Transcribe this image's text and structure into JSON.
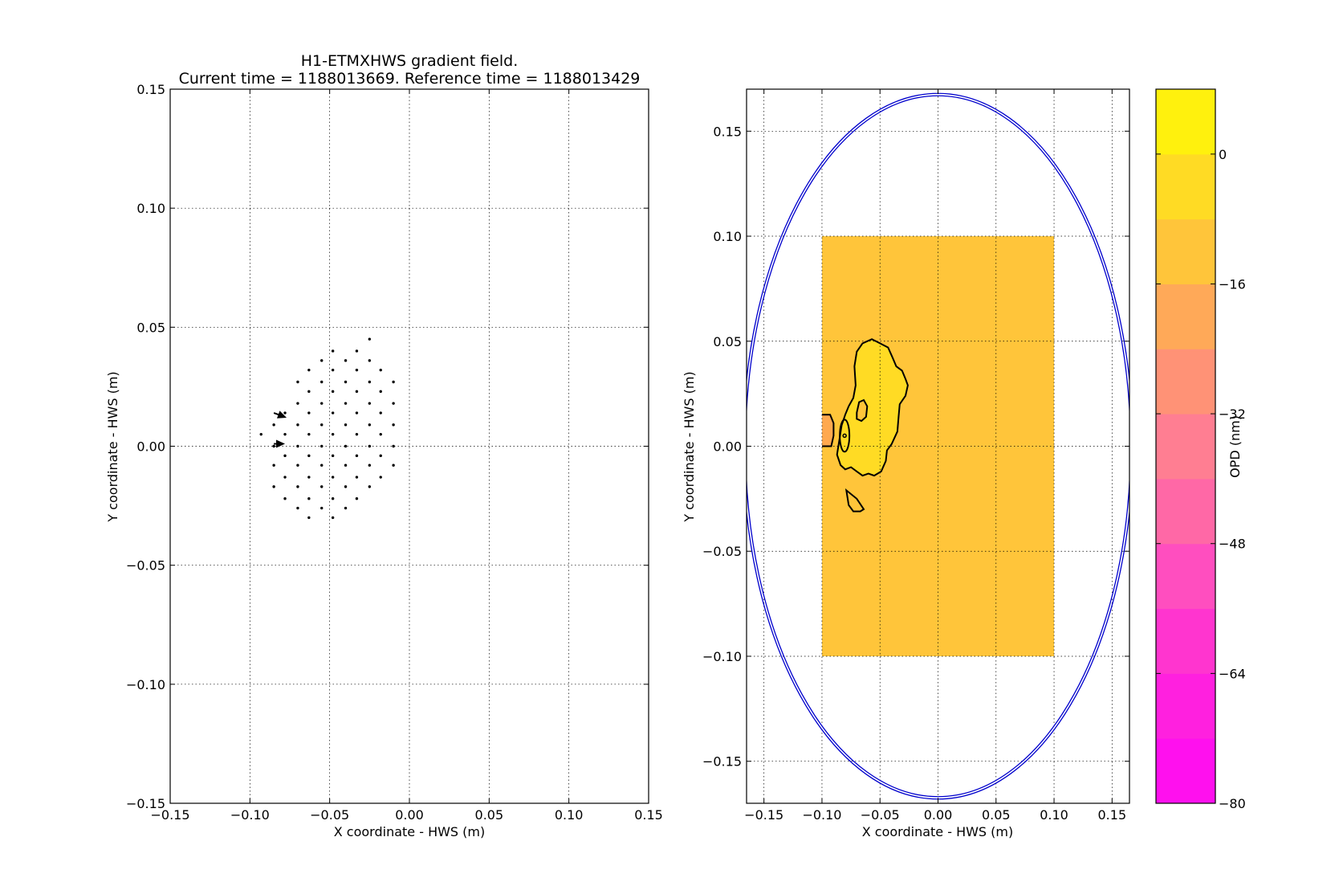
{
  "chart_data": [
    {
      "type": "quiver",
      "title": "H1-ETMXHWS gradient field.",
      "subtitle": "Current time = 1188013669. Reference time = 1188013429",
      "xlabel": "X coordinate - HWS (m)",
      "ylabel": "Y coordinate - HWS (m)",
      "xlim": [
        -0.15,
        0.15
      ],
      "ylim": [
        -0.15,
        0.15
      ],
      "xticks": [
        "−0.15",
        "−0.10",
        "−0.05",
        "0.00",
        "0.05",
        "0.10",
        "0.15"
      ],
      "yticks": [
        "−0.15",
        "−0.10",
        "−0.05",
        "0.00",
        "0.05",
        "0.10",
        "0.15"
      ],
      "grid": true,
      "points": [
        [
          -0.025,
          0.045
        ],
        [
          -0.048,
          0.04
        ],
        [
          -0.033,
          0.04
        ],
        [
          -0.055,
          0.036
        ],
        [
          -0.04,
          0.036
        ],
        [
          -0.025,
          0.036
        ],
        [
          -0.063,
          0.032
        ],
        [
          -0.048,
          0.032
        ],
        [
          -0.033,
          0.032
        ],
        [
          -0.018,
          0.032
        ],
        [
          -0.07,
          0.027
        ],
        [
          -0.055,
          0.027
        ],
        [
          -0.04,
          0.027
        ],
        [
          -0.025,
          0.027
        ],
        [
          -0.01,
          0.027
        ],
        [
          -0.063,
          0.023
        ],
        [
          -0.048,
          0.023
        ],
        [
          -0.033,
          0.023
        ],
        [
          -0.018,
          0.023
        ],
        [
          -0.07,
          0.018
        ],
        [
          -0.055,
          0.018
        ],
        [
          -0.04,
          0.018
        ],
        [
          -0.025,
          0.018
        ],
        [
          -0.01,
          0.018
        ],
        [
          -0.078,
          0.014
        ],
        [
          -0.063,
          0.014
        ],
        [
          -0.048,
          0.014
        ],
        [
          -0.033,
          0.014
        ],
        [
          -0.018,
          0.014
        ],
        [
          -0.085,
          0.009
        ],
        [
          -0.07,
          0.009
        ],
        [
          -0.055,
          0.009
        ],
        [
          -0.04,
          0.009
        ],
        [
          -0.025,
          0.009
        ],
        [
          -0.01,
          0.009
        ],
        [
          -0.093,
          0.005
        ],
        [
          -0.078,
          0.005
        ],
        [
          -0.063,
          0.005
        ],
        [
          -0.048,
          0.005
        ],
        [
          -0.033,
          0.005
        ],
        [
          -0.018,
          0.005
        ],
        [
          -0.085,
          0.0
        ],
        [
          -0.07,
          0.0
        ],
        [
          -0.055,
          0.0
        ],
        [
          -0.04,
          0.0
        ],
        [
          -0.025,
          0.0
        ],
        [
          -0.01,
          0.0
        ],
        [
          -0.078,
          -0.004
        ],
        [
          -0.063,
          -0.004
        ],
        [
          -0.048,
          -0.004
        ],
        [
          -0.033,
          -0.004
        ],
        [
          -0.018,
          -0.004
        ],
        [
          -0.085,
          -0.008
        ],
        [
          -0.07,
          -0.008
        ],
        [
          -0.055,
          -0.008
        ],
        [
          -0.04,
          -0.008
        ],
        [
          -0.025,
          -0.008
        ],
        [
          -0.01,
          -0.008
        ],
        [
          -0.078,
          -0.013
        ],
        [
          -0.063,
          -0.013
        ],
        [
          -0.048,
          -0.013
        ],
        [
          -0.033,
          -0.013
        ],
        [
          -0.018,
          -0.013
        ],
        [
          -0.085,
          -0.017
        ],
        [
          -0.07,
          -0.017
        ],
        [
          -0.055,
          -0.017
        ],
        [
          -0.04,
          -0.017
        ],
        [
          -0.025,
          -0.017
        ],
        [
          -0.078,
          -0.022
        ],
        [
          -0.063,
          -0.022
        ],
        [
          -0.048,
          -0.022
        ],
        [
          -0.033,
          -0.022
        ],
        [
          -0.07,
          -0.026
        ],
        [
          -0.055,
          -0.026
        ],
        [
          -0.04,
          -0.026
        ],
        [
          -0.063,
          -0.03
        ],
        [
          -0.048,
          -0.03
        ]
      ],
      "arrows": [
        {
          "x": -0.085,
          "y": 0.014,
          "u": 0.008,
          "v": -0.002
        },
        {
          "x": -0.085,
          "y": 0.001,
          "u": 0.007,
          "v": 0.0
        }
      ]
    },
    {
      "type": "contourf",
      "xlabel": "X coordinate - HWS (m)",
      "ylabel": "Y coordinate - HWS (m)",
      "xlim": [
        -0.165,
        0.165
      ],
      "ylim": [
        -0.17,
        0.17
      ],
      "xticks": [
        "−0.15",
        "−0.10",
        "−0.05",
        "0.00",
        "0.05",
        "0.10",
        "0.15"
      ],
      "yticks": [
        "−0.15",
        "−0.10",
        "−0.05",
        "0.00",
        "0.05",
        "0.10",
        "0.15"
      ],
      "grid": true,
      "data_region": {
        "x": [
          -0.1,
          0.1
        ],
        "y": [
          -0.1,
          0.1
        ],
        "level_color": "#ffc53a"
      },
      "high_region_color": "#ffdb24",
      "low_region_color": "#ffa94f",
      "aperture_radius": 0.168,
      "aperture_color": "#0000cc",
      "colorbar": {
        "label": "OPD (nm)",
        "range": [
          -80,
          8
        ],
        "tick_values": [
          0,
          -16,
          -32,
          -48,
          -64,
          -80
        ],
        "tick_labels": [
          "0",
          "−16",
          "−32",
          "−48",
          "−64",
          "−80"
        ],
        "band_colors": [
          "#ff10ee",
          "#ff20df",
          "#ff35cf",
          "#ff4ebf",
          "#ff68a6",
          "#ff7e92",
          "#ff9276",
          "#ffa958",
          "#ffc53a",
          "#ffdb24",
          "#fff10d"
        ]
      }
    }
  ]
}
